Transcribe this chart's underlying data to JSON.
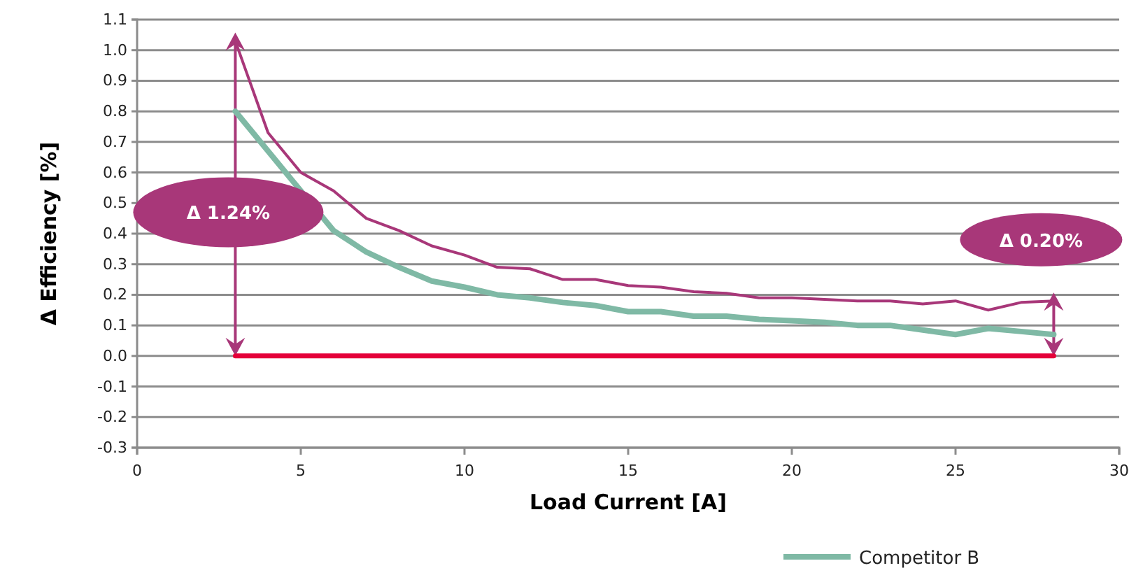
{
  "chart_data": {
    "type": "line",
    "xlabel": "Load Current [A]",
    "ylabel": "Δ Efficiency [%]",
    "x": [
      3,
      4,
      5,
      6,
      7,
      8,
      9,
      10,
      11,
      12,
      13,
      14,
      15,
      16,
      17,
      18,
      19,
      20,
      21,
      22,
      23,
      24,
      25,
      26,
      27,
      28
    ],
    "series": [
      {
        "color": "#a83779",
        "values": [
          1.03,
          0.73,
          0.6,
          0.54,
          0.45,
          0.41,
          0.36,
          0.33,
          0.29,
          0.285,
          0.25,
          0.25,
          0.23,
          0.225,
          0.21,
          0.205,
          0.19,
          0.19,
          0.185,
          0.18,
          0.18,
          0.17,
          0.18,
          0.15,
          0.175,
          0.18
        ]
      },
      {
        "color": "#e4003a",
        "values": [
          0,
          0,
          0,
          0,
          0,
          0,
          0,
          0,
          0,
          0,
          0,
          0,
          0,
          0,
          0,
          0,
          0,
          0,
          0,
          0,
          0,
          0,
          0,
          0,
          0,
          0
        ]
      },
      {
        "name": "Competitor B",
        "color": "#7fb9a5",
        "values": [
          0.8,
          null,
          null,
          0.41,
          0.34,
          0.29,
          0.245,
          0.225,
          0.2,
          0.19,
          0.175,
          0.165,
          0.145,
          0.145,
          0.13,
          0.13,
          0.12,
          0.115,
          0.11,
          0.1,
          0.1,
          0.085,
          0.07,
          0.09,
          0.08,
          0.07
        ]
      }
    ],
    "xlim": [
      0,
      30
    ],
    "xticks": [
      0,
      5,
      10,
      15,
      20,
      25,
      30
    ],
    "ylim": [
      -0.3,
      1.1
    ],
    "yticks": [
      {
        "value": -0.3,
        "label": "-0.3"
      },
      {
        "value": -0.2,
        "label": "-0.2"
      },
      {
        "value": -0.1,
        "label": "-0.1"
      },
      {
        "value": 0,
        "label": "0.0"
      },
      {
        "value": 0.1,
        "label": "0.1"
      },
      {
        "value": 0.2,
        "label": "0.2"
      },
      {
        "value": 0.3,
        "label": "0.3"
      },
      {
        "value": 0.4,
        "label": "0.4"
      },
      {
        "value": 0.5,
        "label": "0.5"
      },
      {
        "value": 0.6,
        "label": "0.6"
      },
      {
        "value": 0.7,
        "label": "0.7"
      },
      {
        "value": 0.8,
        "label": "0.8"
      },
      {
        "value": 0.9,
        "label": "0.9"
      },
      {
        "value": 1,
        "label": "1.0"
      },
      {
        "value": 1.1,
        "label": "1.1"
      }
    ],
    "grid": "y",
    "legend": "bottom",
    "marker": "none",
    "line_style": "solid",
    "annotations": [
      "Δ 1.24%",
      "Δ 0.20%"
    ]
  }
}
